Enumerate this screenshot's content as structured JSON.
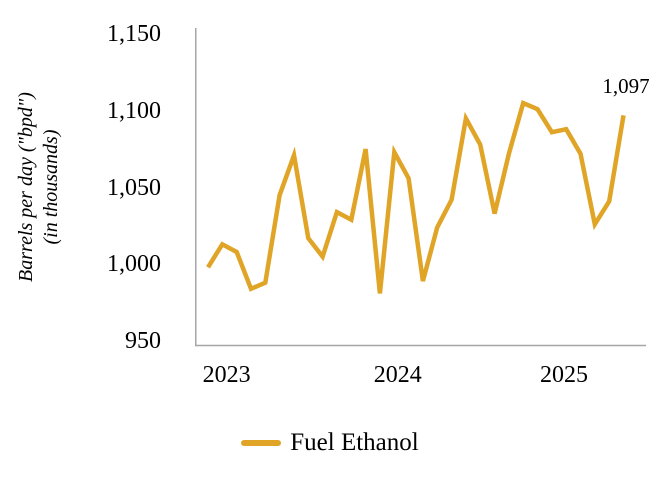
{
  "chart_data": {
    "type": "line",
    "title": "",
    "ylabel_line1": "Barrels per day (\"bpd\")",
    "ylabel_line2": "(in thousands)",
    "xlabel": "",
    "categories": [
      "2023-01",
      "2023-02",
      "2023-03",
      "2023-04",
      "2023-05",
      "2023-06",
      "2023-07",
      "2023-08",
      "2023-09",
      "2023-10",
      "2023-11",
      "2023-12",
      "2024-01",
      "2024-02",
      "2024-03",
      "2024-04",
      "2024-05",
      "2024-06",
      "2024-07",
      "2024-08",
      "2024-09",
      "2024-10",
      "2024-11",
      "2024-12",
      "2025-01",
      "2025-02",
      "2025-03",
      "2025-04",
      "2025-05",
      "2025-06"
    ],
    "series": [
      {
        "name": "Fuel Ethanol",
        "color": "#E0A427",
        "values": [
          998,
          1013,
          1008,
          984,
          988,
          1045,
          1071,
          1017,
          1005,
          1034,
          1029,
          1075,
          981,
          1073,
          1056,
          989,
          1024,
          1042,
          1095,
          1078,
          1033,
          1072,
          1105,
          1101,
          1086,
          1088,
          1072,
          1026,
          1041,
          1097
        ]
      }
    ],
    "x_year_tick_labels": [
      "2023",
      "2024",
      "2025"
    ],
    "y_ticks": [
      950,
      1000,
      1050,
      1100,
      1150
    ],
    "y_tick_labels": [
      "950",
      "1,000",
      "1,050",
      "1,100",
      "1,150"
    ],
    "ylim": [
      950,
      1150
    ],
    "last_point_label": "1,097",
    "grid": false,
    "legend_position": "bottom-center",
    "axis_color": "#A6A6A6",
    "text_color": "#000000"
  }
}
